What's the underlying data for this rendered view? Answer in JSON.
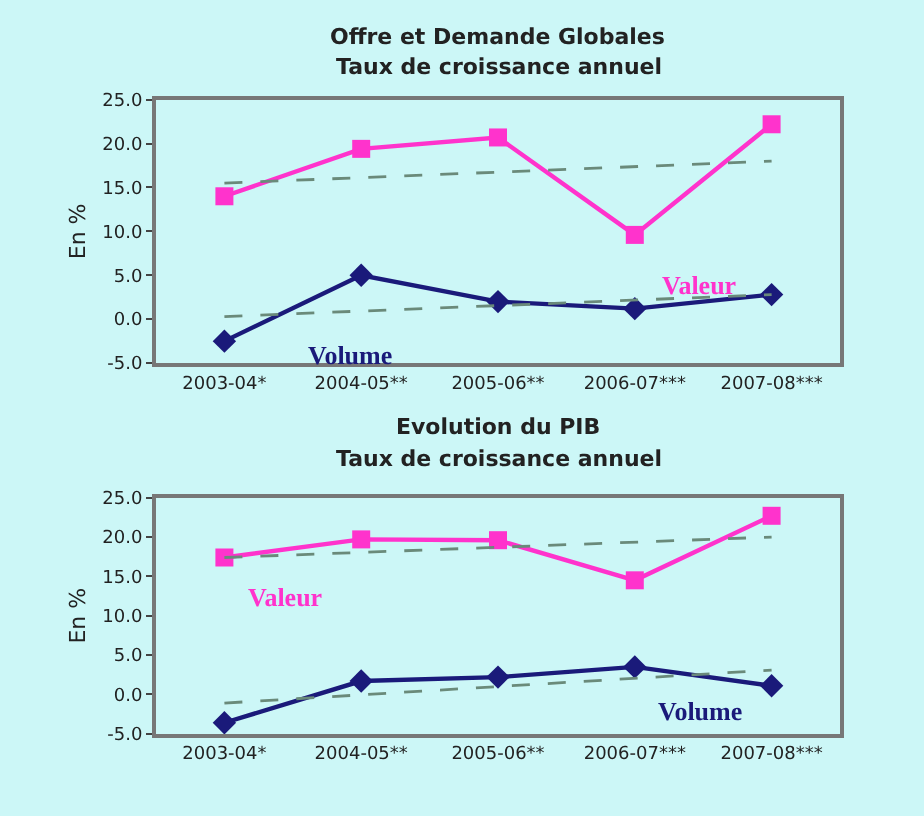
{
  "chart_data": [
    {
      "type": "line",
      "title": "Offre et Demande Globales",
      "subtitle": "Taux de croissance annuel",
      "ylabel": "En %",
      "categories": [
        "2003-04*",
        "2004-05**",
        "2005-06**",
        "2006-07***",
        "2007-08***"
      ],
      "ylim": [
        -5,
        25
      ],
      "yticks": [
        {
          "value": -5,
          "label": "-5.0"
        },
        {
          "value": 0,
          "label": "0.0"
        },
        {
          "value": 5,
          "label": "5.0"
        },
        {
          "value": 10,
          "label": "10.0"
        },
        {
          "value": 15,
          "label": "15.0"
        },
        {
          "value": 20,
          "label": "20.0"
        },
        {
          "value": 25,
          "label": "25.0"
        }
      ],
      "grid": false,
      "legend": false,
      "series": [
        {
          "name": "Valeur",
          "color": "#ff33cc",
          "marker": "square",
          "values": [
            14.0,
            19.4,
            20.7,
            9.6,
            22.2
          ]
        },
        {
          "name": "Volume",
          "color": "#1a1a7a",
          "marker": "diamond",
          "values": [
            -2.5,
            5.0,
            2.0,
            1.2,
            2.8
          ]
        },
        {
          "type": "line",
          "color": "#6a8a7a",
          "line_style": "dashed",
          "marker": "none",
          "x": [
            "2003-04*",
            "2007-08***"
          ],
          "values": [
            15.5,
            18.0
          ]
        },
        {
          "type": "line",
          "color": "#6a8a7a",
          "line_style": "dashed",
          "marker": "none",
          "x": [
            "2003-04*",
            "2007-08***"
          ],
          "values": [
            0.3,
            2.8
          ]
        }
      ]
    },
    {
      "type": "line",
      "title": "Evolution du PIB",
      "subtitle": "Taux de croissance annuel",
      "ylabel": "En %",
      "categories": [
        "2003-04*",
        "2004-05**",
        "2005-06**",
        "2006-07***",
        "2007-08***"
      ],
      "ylim": [
        -5,
        25
      ],
      "yticks": [
        {
          "value": -5,
          "label": "-5.0"
        },
        {
          "value": 0,
          "label": "0.0"
        },
        {
          "value": 5,
          "label": "5.0"
        },
        {
          "value": 10,
          "label": "10.0"
        },
        {
          "value": 15,
          "label": "15.0"
        },
        {
          "value": 20,
          "label": "20.0"
        },
        {
          "value": 25,
          "label": "25.0"
        }
      ],
      "grid": false,
      "legend": false,
      "series": [
        {
          "name": "Valeur",
          "color": "#ff33cc",
          "marker": "square",
          "values": [
            17.4,
            19.7,
            19.6,
            14.5,
            22.7
          ]
        },
        {
          "name": "Volume",
          "color": "#1a1a7a",
          "marker": "diamond",
          "values": [
            -3.6,
            1.7,
            2.2,
            3.5,
            1.1
          ]
        },
        {
          "type": "line",
          "color": "#6a8a7a",
          "line_style": "dashed",
          "marker": "none",
          "x": [
            "2003-04*",
            "2007-08***"
          ],
          "values": [
            17.4,
            20.0
          ]
        },
        {
          "type": "line",
          "color": "#6a8a7a",
          "line_style": "dashed",
          "marker": "none",
          "x": [
            "2003-04*",
            "2007-08***"
          ],
          "values": [
            -1.1,
            3.1
          ]
        }
      ]
    }
  ]
}
